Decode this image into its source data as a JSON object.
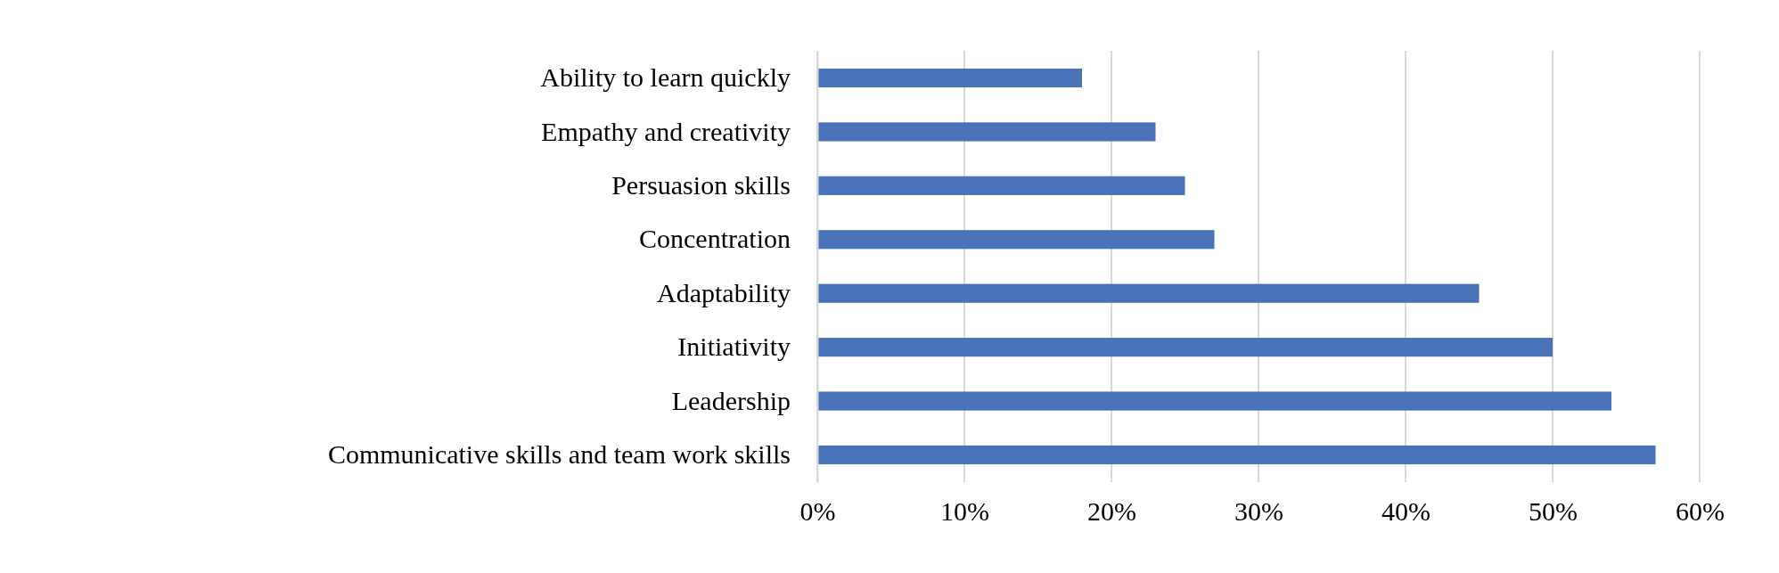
{
  "chart_data": {
    "type": "bar",
    "orientation": "horizontal",
    "categories": [
      "Ability to learn quickly",
      "Empathy and creativity",
      "Persuasion skills",
      "Concentration",
      "Adaptability",
      "Initiativity",
      "Leadership",
      "Communicative skills and team work skills"
    ],
    "values": [
      0.18,
      0.23,
      0.25,
      0.27,
      0.45,
      0.5,
      0.54,
      0.57
    ],
    "color": "#4a72b8",
    "xlim": [
      0,
      0.6
    ],
    "xticks": [
      {
        "value": 0,
        "label": "0%"
      },
      {
        "value": 0.1,
        "label": "10%"
      },
      {
        "value": 0.2,
        "label": "20%"
      },
      {
        "value": 0.3,
        "label": "30%"
      },
      {
        "value": 0.4,
        "label": "40%"
      },
      {
        "value": 0.5,
        "label": "50%"
      },
      {
        "value": 0.6,
        "label": "60%"
      }
    ],
    "grid": "x"
  }
}
